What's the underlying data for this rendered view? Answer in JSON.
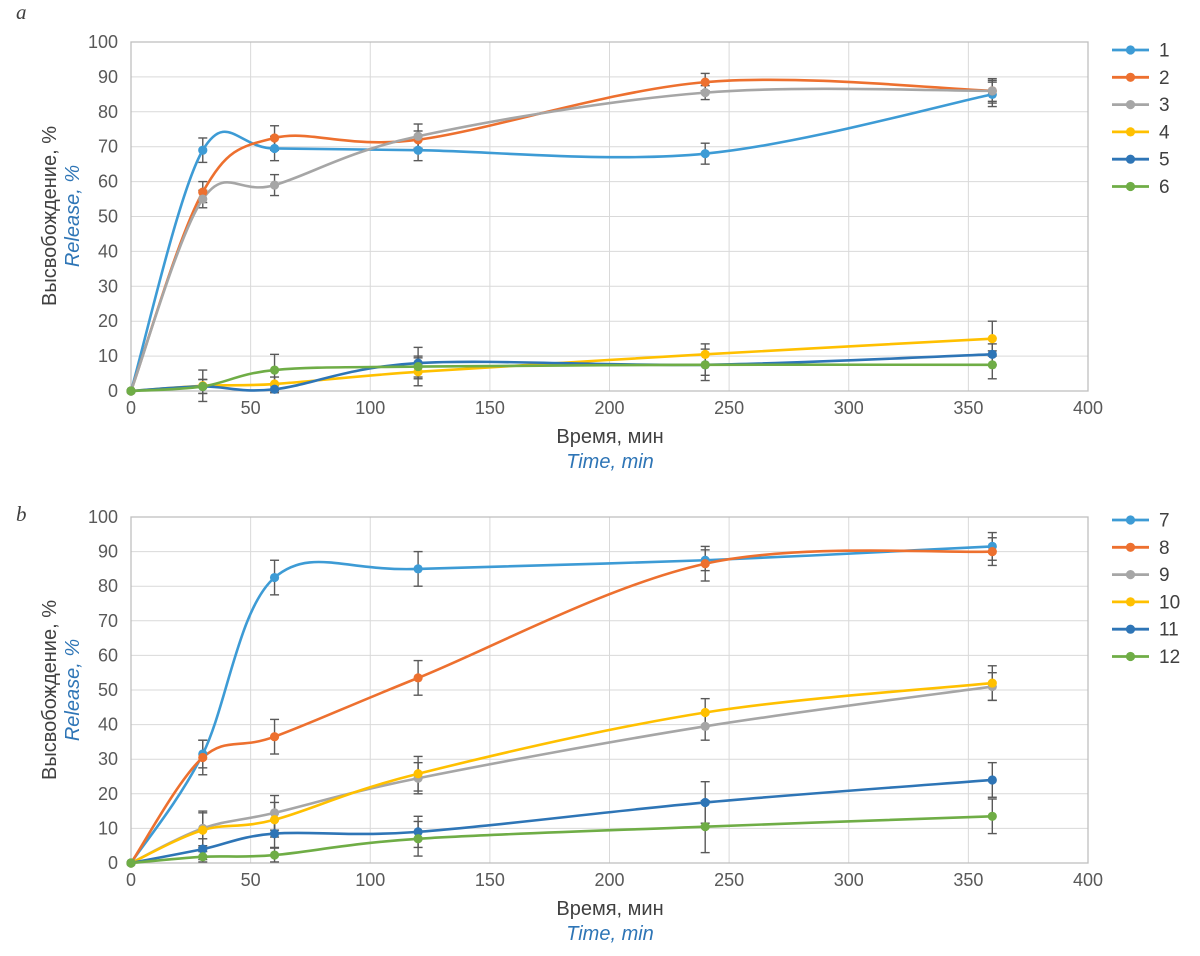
{
  "page": {
    "background": "#ffffff"
  },
  "palette": {
    "grid": "#d9d9d9",
    "plot_border": "#bfbfbf",
    "tick_text": "#595959",
    "title_text": "#404040",
    "accent_blue": "#2e75b6",
    "error_bar": "#595959"
  },
  "chart_data": [
    {
      "type": "line",
      "panel_label": "a",
      "xlabel": "Время, мин",
      "xlabel_translit": "Time, min",
      "ylabel": "Высвобождение, %",
      "ylabel_translit": "Release, %",
      "xlim": [
        0,
        400
      ],
      "ylim": [
        0,
        100
      ],
      "x_ticks": [
        0,
        50,
        100,
        150,
        200,
        250,
        300,
        350,
        400
      ],
      "y_ticks": [
        0,
        10,
        20,
        30,
        40,
        50,
        60,
        70,
        80,
        90,
        100
      ],
      "grid": true,
      "smoothed_lines": true,
      "error_bars": true,
      "legend_position": "right-top",
      "x": [
        0,
        30,
        60,
        120,
        240,
        360
      ],
      "series": [
        {
          "name": "1",
          "color": "#3d9bd5",
          "values": [
            0,
            69,
            69.5,
            69,
            68,
            85
          ],
          "errors": [
            0,
            3.5,
            3.5,
            3,
            3,
            3.5
          ]
        },
        {
          "name": "2",
          "color": "#ed702f",
          "values": [
            0,
            57,
            72.5,
            72,
            88.5,
            86
          ],
          "errors": [
            0,
            3,
            3.5,
            2.5,
            2.5,
            3
          ]
        },
        {
          "name": "3",
          "color": "#a6a6a6",
          "values": [
            0,
            55,
            59,
            73,
            85.5,
            86
          ],
          "errors": [
            0,
            2.5,
            3,
            3.5,
            2,
            3.5
          ]
        },
        {
          "name": "4",
          "color": "#ffc000",
          "values": [
            0,
            1.5,
            2,
            5.5,
            10.5,
            15
          ],
          "errors": [
            0,
            4.5,
            2,
            4,
            3,
            5
          ]
        },
        {
          "name": "5",
          "color": "#2e75b6",
          "values": [
            0,
            1.3,
            0.5,
            8,
            7.5,
            10.5
          ],
          "errors": [
            0,
            2,
            1,
            4.5,
            3,
            3
          ]
        },
        {
          "name": "6",
          "color": "#6fad46",
          "values": [
            0,
            1.3,
            6,
            7,
            7.5,
            7.5
          ],
          "errors": [
            0,
            2,
            4.5,
            3,
            4.5,
            4
          ]
        }
      ]
    },
    {
      "type": "line",
      "panel_label": "b",
      "xlabel": "Время, мин",
      "xlabel_translit": "Time, min",
      "ylabel": "Высвобождение, %",
      "ylabel_translit": "Release, %",
      "xlim": [
        0,
        400
      ],
      "ylim": [
        0,
        100
      ],
      "x_ticks": [
        0,
        50,
        100,
        150,
        200,
        250,
        300,
        350,
        400
      ],
      "y_ticks": [
        0,
        10,
        20,
        30,
        40,
        50,
        60,
        70,
        80,
        90,
        100
      ],
      "grid": true,
      "smoothed_lines": true,
      "error_bars": true,
      "legend_position": "right-top",
      "x": [
        0,
        30,
        60,
        120,
        240,
        360
      ],
      "series": [
        {
          "name": "7",
          "color": "#3d9bd5",
          "values": [
            0,
            31.5,
            82.5,
            85,
            87.5,
            91.5
          ],
          "errors": [
            0,
            4,
            5,
            5,
            3,
            4
          ]
        },
        {
          "name": "8",
          "color": "#ed702f",
          "values": [
            0,
            30.5,
            36.5,
            53.5,
            86.5,
            90
          ],
          "errors": [
            0,
            5,
            5,
            5,
            5,
            4
          ]
        },
        {
          "name": "9",
          "color": "#a6a6a6",
          "values": [
            0,
            10,
            14.5,
            24.5,
            39.5,
            51
          ],
          "errors": [
            0,
            5,
            5,
            4.5,
            4,
            4
          ]
        },
        {
          "name": "10",
          "color": "#ffc000",
          "values": [
            0,
            9.5,
            12.5,
            25.8,
            43.5,
            52
          ],
          "errors": [
            0,
            5,
            5,
            5,
            4,
            5
          ]
        },
        {
          "name": "11",
          "color": "#2e75b6",
          "values": [
            0,
            4,
            8.5,
            9,
            17.5,
            24
          ],
          "errors": [
            0,
            3,
            4,
            4.5,
            6,
            5
          ]
        },
        {
          "name": "12",
          "color": "#6fad46",
          "values": [
            0,
            1.8,
            2.3,
            7,
            10.5,
            13.5
          ],
          "errors": [
            0,
            1.5,
            2,
            5,
            7.5,
            5
          ]
        }
      ]
    }
  ]
}
